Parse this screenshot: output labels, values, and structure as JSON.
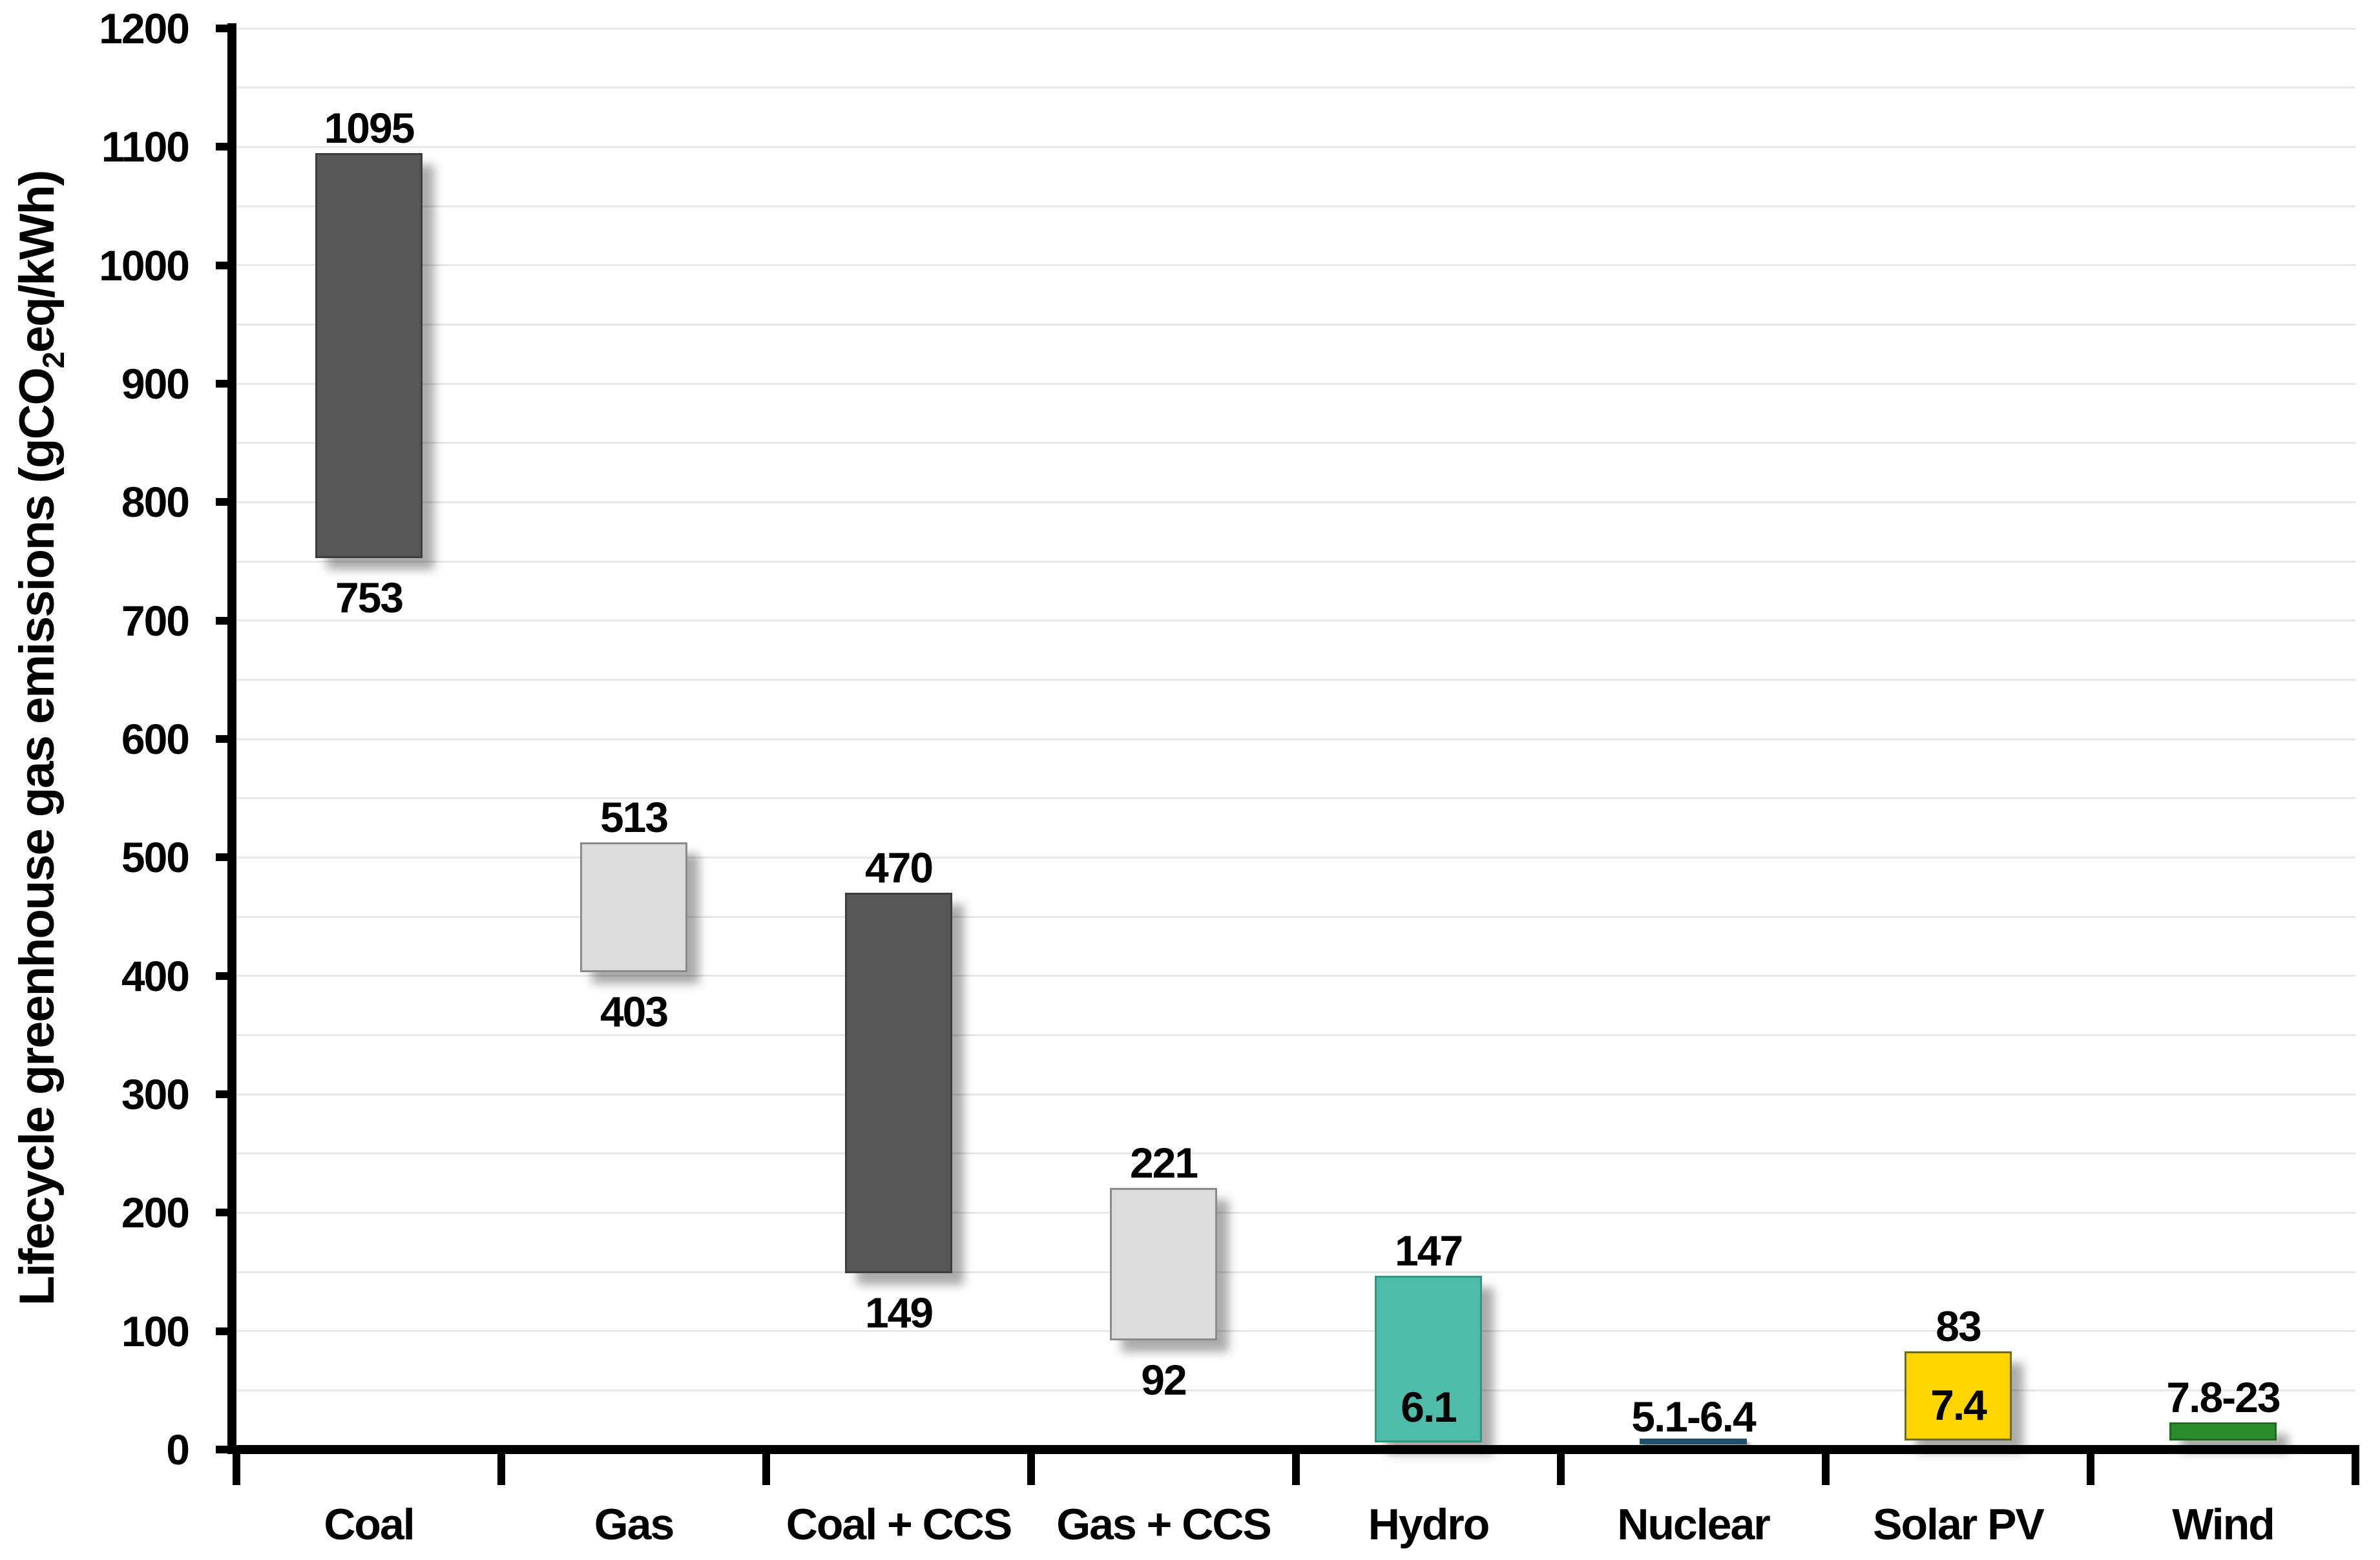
{
  "chart_data": {
    "type": "bar",
    "subtype": "floating-range-columns",
    "title": "",
    "xlabel": "",
    "ylabel_prefix": "Lifecycle greenhouse gas emissions (gCO",
    "ylabel_sub": "2",
    "ylabel_suffix": "eq/kWh)",
    "ylim": [
      0,
      1200
    ],
    "ytick_step": 100,
    "yticks": [
      0,
      100,
      200,
      300,
      400,
      500,
      600,
      700,
      800,
      900,
      1000,
      1100,
      1200
    ],
    "grid": true,
    "grid_step": 50,
    "grid_color": "#e7e7e7",
    "axis_color": "#000000",
    "background_color": "#ffffff",
    "legend": "none",
    "categories": [
      "Coal",
      "Gas",
      "Coal + CCS",
      "Gas + CCS",
      "Hydro",
      "Nuclear",
      "Solar PV",
      "Wind"
    ],
    "series": [
      {
        "name": "Coal",
        "min": 753,
        "max": 1095,
        "color": "#575757",
        "border": "#3d3d3d",
        "label_above": "1095",
        "label_below": "753",
        "label_inside": "",
        "thin_line": false
      },
      {
        "name": "Gas",
        "min": 403,
        "max": 513,
        "color": "#dcdcdc",
        "border": "#8a8a8a",
        "label_above": "513",
        "label_below": "403",
        "label_inside": "",
        "thin_line": false
      },
      {
        "name": "Coal + CCS",
        "min": 149,
        "max": 470,
        "color": "#575757",
        "border": "#3d3d3d",
        "label_above": "470",
        "label_below": "149",
        "label_inside": "",
        "thin_line": false
      },
      {
        "name": "Gas + CCS",
        "min": 92,
        "max": 221,
        "color": "#dcdcdc",
        "border": "#8a8a8a",
        "label_above": "221",
        "label_below": "92",
        "label_inside": "",
        "thin_line": false
      },
      {
        "name": "Hydro",
        "min": 6.1,
        "max": 147,
        "color": "#4fbca9",
        "border": "#35967f",
        "label_above": "147",
        "label_below": "",
        "label_inside": "6.1",
        "thin_line": false
      },
      {
        "name": "Nuclear",
        "min": 5.1,
        "max": 6.4,
        "color": "#235070",
        "border": "#235070",
        "label_above": "5.1-6.4",
        "label_below": "",
        "label_inside": "",
        "thin_line": true
      },
      {
        "name": "Solar PV",
        "min": 7.4,
        "max": 83,
        "color": "#ffd500",
        "border": "#6b6b1f",
        "label_above": "83",
        "label_below": "",
        "label_inside": "7.4",
        "thin_line": false
      },
      {
        "name": "Wind",
        "min": 7.8,
        "max": 23,
        "color": "#2a8c2a",
        "border": "#1e6b1e",
        "label_above": "7.8-23",
        "label_below": "",
        "label_inside": "",
        "thin_line": false
      }
    ]
  }
}
